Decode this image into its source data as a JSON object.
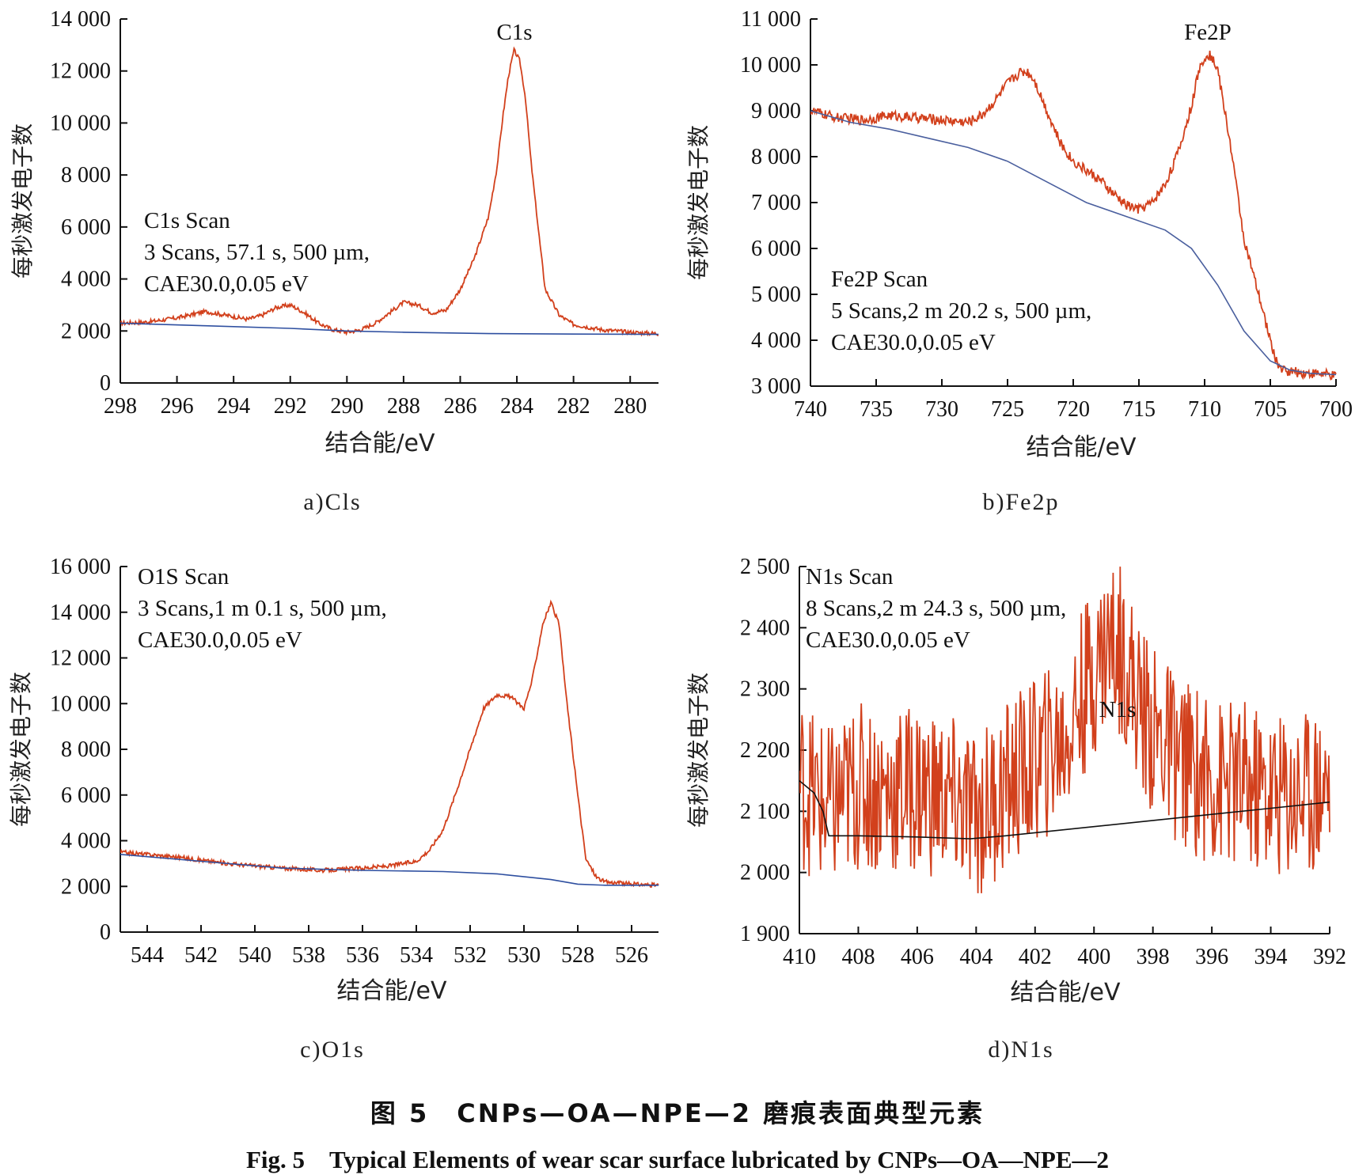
{
  "figure": {
    "title_cn": "图 5　CNPs—OA—NPE—2 磨痕表面典型元素",
    "title_en": "Fig. 5　Typical Elements of wear scar surface lubricated by CNPs—OA—NPE—2"
  },
  "colors": {
    "signal": "#d2401c",
    "background_a": "#2e4fa0",
    "background_b": "#4a5f9e",
    "background_c": "#2e4fa0",
    "background_d": "#111111",
    "axis": "#111111"
  },
  "chart_data": [
    {
      "type": "line",
      "caption": "a)Cls",
      "peak_label": "C1s",
      "annotation": [
        "C1s Scan",
        "3 Scans, 57.1 s, 500 µm,",
        "CAE30.0,0.05 eV"
      ],
      "xlabel": "结合能/eV",
      "ylabel": "每秒激发电子数",
      "xlim": [
        298,
        279
      ],
      "ylim": [
        0,
        14000
      ],
      "xticks": [
        298,
        296,
        294,
        292,
        290,
        288,
        286,
        284,
        282,
        280
      ],
      "xtick_labels": [
        "298",
        "296",
        "294",
        "292",
        "290",
        "288",
        "286",
        "284",
        "282",
        "280"
      ],
      "yticks": [
        0,
        2000,
        4000,
        6000,
        8000,
        10000,
        12000,
        14000
      ],
      "ytick_labels": [
        "0",
        "2 000",
        "4 000",
        "6 000",
        "8 000",
        "10 000",
        "12 000",
        "14 000"
      ],
      "series": [
        {
          "role": "spectrum",
          "noise": 80,
          "x": [
            298,
            297,
            296,
            295,
            294,
            293.5,
            293,
            292.5,
            292,
            291.5,
            291,
            290.5,
            290,
            289.5,
            289,
            288.5,
            288,
            287.5,
            287,
            286.5,
            286,
            285.5,
            285,
            284.7,
            284.5,
            284.3,
            284.1,
            283.9,
            283.7,
            283.5,
            283.2,
            283,
            282.5,
            282,
            281,
            280,
            279
          ],
          "y": [
            2300,
            2350,
            2500,
            2750,
            2550,
            2450,
            2600,
            2900,
            3000,
            2700,
            2300,
            2050,
            1950,
            2050,
            2300,
            2700,
            3100,
            3000,
            2700,
            2800,
            3600,
            4800,
            6400,
            8300,
            10200,
            11800,
            12800,
            12400,
            11000,
            8500,
            5500,
            3600,
            2600,
            2250,
            2050,
            1950,
            1900
          ]
        },
        {
          "role": "background",
          "x": [
            298,
            295,
            292,
            290,
            288,
            285,
            282,
            279
          ],
          "y": [
            2300,
            2200,
            2100,
            2000,
            1950,
            1900,
            1880,
            1870
          ]
        }
      ]
    },
    {
      "type": "line",
      "caption": "b)Fe2p",
      "peak_label": "Fe2P",
      "annotation": [
        "Fe2P Scan",
        "5 Scans,2 m 20.2 s, 500 µm,",
        "CAE30.0,0.05 eV"
      ],
      "xlabel": "结合能/eV",
      "ylabel": "每秒激发电子数",
      "xlim": [
        740,
        700
      ],
      "ylim": [
        3000,
        11000
      ],
      "xticks": [
        740,
        735,
        730,
        725,
        720,
        715,
        710,
        705,
        700
      ],
      "xtick_labels": [
        "740",
        "735",
        "730",
        "725",
        "720",
        "715",
        "710",
        "705",
        "700"
      ],
      "yticks": [
        3000,
        4000,
        5000,
        6000,
        7000,
        8000,
        9000,
        10000,
        11000
      ],
      "ytick_labels": [
        "3 000",
        "4 000",
        "5 000",
        "6 000",
        "7 000",
        "8 000",
        "9 000",
        "10 000",
        "11 000"
      ],
      "series": [
        {
          "role": "spectrum",
          "noise": 110,
          "x": [
            740,
            738,
            736,
            734,
            732,
            730,
            728,
            727,
            726,
            725,
            724,
            723.5,
            723,
            722,
            721,
            720,
            719,
            718,
            717,
            716,
            715,
            714,
            713,
            712,
            711,
            710.5,
            710,
            709.5,
            709,
            708,
            707,
            706,
            705,
            704.5,
            704,
            703,
            702,
            701,
            700
          ],
          "y": [
            9000,
            8850,
            8800,
            8900,
            8850,
            8800,
            8750,
            8900,
            9200,
            9600,
            9850,
            9850,
            9700,
            9000,
            8300,
            7900,
            7700,
            7500,
            7200,
            6950,
            6850,
            7000,
            7400,
            8100,
            9100,
            9800,
            10200,
            10200,
            9900,
            8200,
            6200,
            5100,
            4000,
            3500,
            3350,
            3300,
            3280,
            3270,
            3200
          ]
        },
        {
          "role": "background",
          "x": [
            740,
            737,
            734,
            731,
            728,
            725,
            722,
            719,
            716,
            713,
            711,
            709,
            707,
            705,
            703.5,
            702,
            700
          ],
          "y": [
            9000,
            8750,
            8600,
            8400,
            8200,
            7900,
            7450,
            7000,
            6700,
            6400,
            6000,
            5200,
            4200,
            3550,
            3350,
            3280,
            3250
          ]
        }
      ]
    },
    {
      "type": "line",
      "caption": "c)O1s",
      "annotation": [
        "O1S Scan",
        "3 Scans,1 m 0.1 s, 500 µm,",
        "CAE30.0,0.05 eV"
      ],
      "xlabel": "结合能/eV",
      "ylabel": "每秒激发电子数",
      "xlim": [
        545,
        525
      ],
      "ylim": [
        0,
        16000
      ],
      "xticks": [
        544,
        542,
        540,
        538,
        536,
        534,
        532,
        530,
        528,
        526
      ],
      "xtick_labels": [
        "544",
        "542",
        "540",
        "538",
        "536",
        "534",
        "532",
        "530",
        "528",
        "526"
      ],
      "yticks": [
        0,
        2000,
        4000,
        6000,
        8000,
        10000,
        12000,
        14000,
        16000
      ],
      "ytick_labels": [
        "0",
        "2 000",
        "4 000",
        "6 000",
        "8 000",
        "10 000",
        "12 000",
        "14 000",
        "16 000"
      ],
      "series": [
        {
          "role": "spectrum",
          "noise": 90,
          "x": [
            545,
            543,
            541,
            539,
            537.5,
            536,
            535,
            534,
            533.5,
            533,
            532.5,
            532,
            531.5,
            531,
            530.5,
            530,
            529.7,
            529.3,
            529,
            528.7,
            528.4,
            528,
            527.7,
            527.3,
            527,
            526,
            525
          ],
          "y": [
            3500,
            3300,
            3000,
            2800,
            2700,
            2800,
            2900,
            3100,
            3600,
            4500,
            6200,
            8000,
            9800,
            10400,
            10300,
            9800,
            11000,
            13500,
            14400,
            13500,
            10000,
            6000,
            3200,
            2400,
            2200,
            2100,
            2050
          ]
        },
        {
          "role": "background",
          "x": [
            545,
            542,
            539,
            536,
            533,
            531,
            529,
            528,
            527,
            525
          ],
          "y": [
            3400,
            3100,
            2800,
            2700,
            2650,
            2550,
            2300,
            2100,
            2050,
            2050
          ]
        }
      ]
    },
    {
      "type": "line",
      "caption": "d)N1s",
      "peak_label": "N1s",
      "annotation": [
        "N1s Scan",
        "8 Scans,2 m 24.3 s, 500 µm,",
        "CAE30.0,0.05 eV"
      ],
      "xlabel": "结合能/eV",
      "ylabel": "每秒激发电子数",
      "xlim": [
        410,
        392
      ],
      "ylim": [
        1900,
        2500
      ],
      "xticks": [
        410,
        408,
        406,
        404,
        402,
        400,
        398,
        396,
        394,
        392
      ],
      "xtick_labels": [
        "410",
        "408",
        "406",
        "404",
        "402",
        "400",
        "398",
        "396",
        "394",
        "392"
      ],
      "yticks": [
        1900,
        2000,
        2100,
        2200,
        2300,
        2400,
        2500
      ],
      "ytick_labels": [
        "1 900",
        "2 000",
        "2 100",
        "2 200",
        "2 300",
        "2 400",
        "2 500"
      ],
      "series": [
        {
          "role": "spectrum",
          "noise": 140,
          "x": [
            410,
            409,
            408,
            407,
            406,
            405,
            404,
            403,
            402,
            401,
            400.5,
            400,
            399.5,
            399,
            398.5,
            398,
            397,
            396,
            395,
            394,
            393,
            392
          ],
          "y": [
            2150,
            2100,
            2140,
            2130,
            2140,
            2120,
            2090,
            2140,
            2180,
            2220,
            2280,
            2330,
            2380,
            2360,
            2280,
            2230,
            2180,
            2150,
            2140,
            2130,
            2130,
            2150
          ]
        },
        {
          "role": "background",
          "x": [
            410,
            409.5,
            409.2,
            409,
            408,
            406,
            404.2,
            403,
            400,
            398,
            396,
            394,
            392
          ],
          "y": [
            2150,
            2130,
            2100,
            2060,
            2060,
            2058,
            2055,
            2060,
            2075,
            2085,
            2095,
            2105,
            2115
          ]
        }
      ]
    }
  ]
}
